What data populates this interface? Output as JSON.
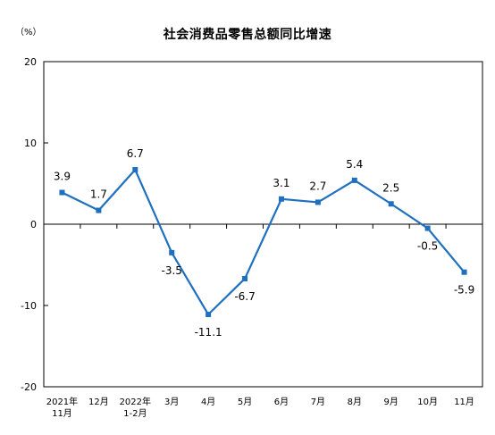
{
  "chart_data": {
    "type": "line",
    "title": "社会消费品零售总额同比增速",
    "unit": "（%）",
    "categories": [
      [
        "2021年",
        "11月"
      ],
      [
        "12月"
      ],
      [
        "2022年",
        "1-2月"
      ],
      [
        "3月"
      ],
      [
        "4月"
      ],
      [
        "5月"
      ],
      [
        "6月"
      ],
      [
        "7月"
      ],
      [
        "8月"
      ],
      [
        "9月"
      ],
      [
        "10月"
      ],
      [
        "11月"
      ]
    ],
    "values": [
      3.9,
      1.7,
      6.7,
      -3.5,
      -11.1,
      -6.7,
      3.1,
      2.7,
      5.4,
      2.5,
      -0.5,
      -5.9
    ],
    "labels": [
      "3.9",
      "1.7",
      "6.7",
      "-3.5",
      "-11.1",
      "-6.7",
      "3.1",
      "2.7",
      "5.4",
      "2.5",
      "-0.5",
      "-5.9"
    ],
    "label_position": [
      "above",
      "above",
      "above",
      "below",
      "below",
      "below",
      "above",
      "above",
      "above",
      "above",
      "below",
      "below"
    ],
    "ylim": [
      -20,
      20
    ],
    "yticks": [
      -20,
      -10,
      0,
      10,
      20
    ],
    "ytick_labels": [
      "-20",
      "-10",
      "0",
      "10",
      "20"
    ],
    "grid": false,
    "line_color": "#1f6fc1",
    "marker": "square"
  }
}
